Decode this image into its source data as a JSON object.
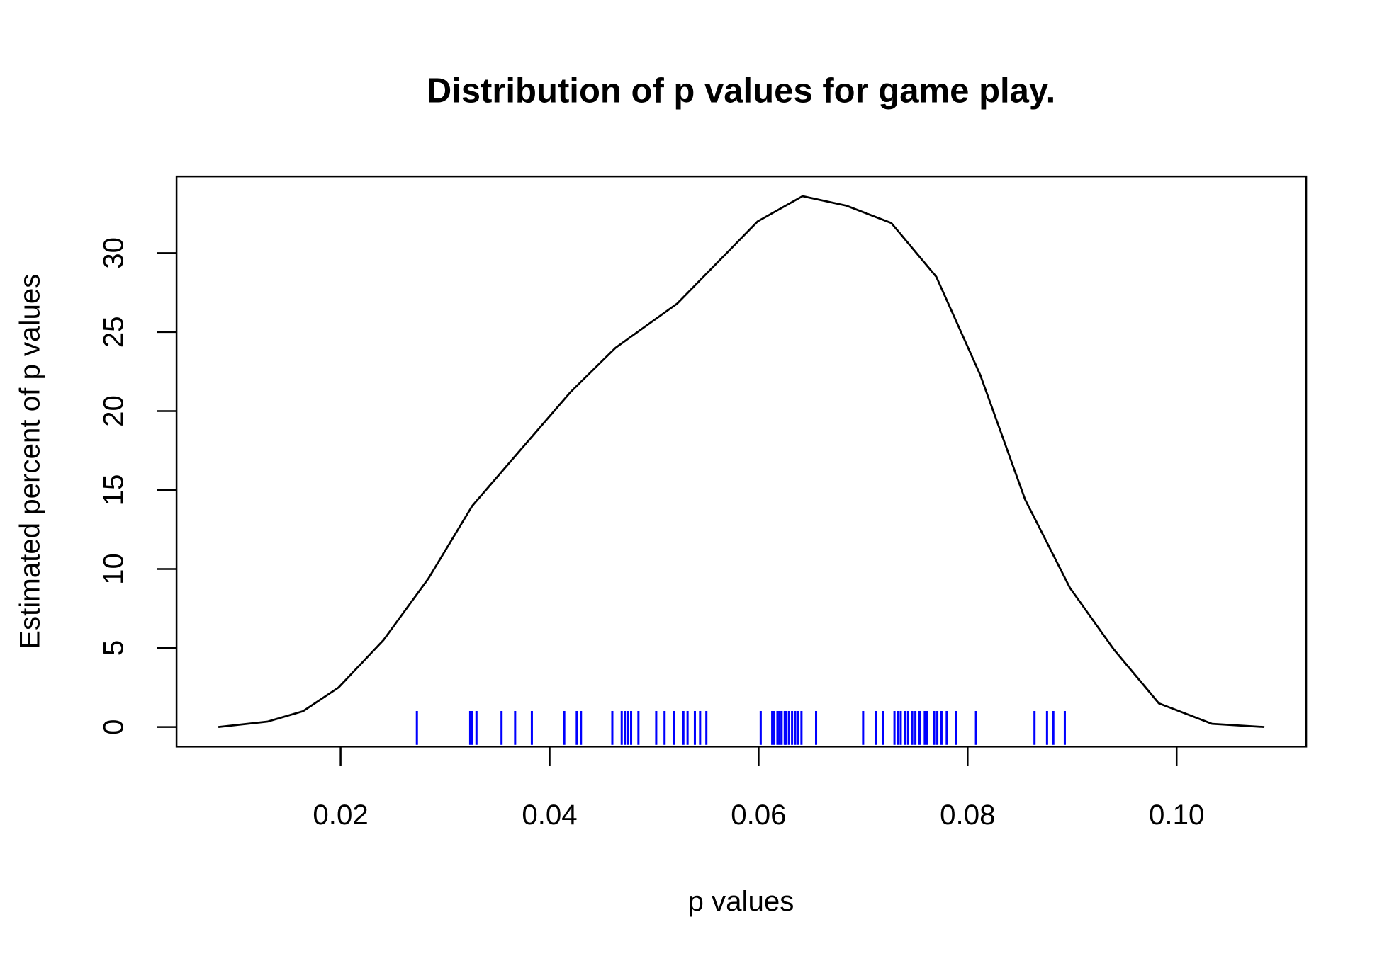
{
  "chart_data": {
    "type": "line",
    "title": "Distribution of p values for game play.",
    "x_label": "p values",
    "y_label": "Estimated percent of p values",
    "x": [
      0.0083,
      0.013,
      0.0164,
      0.0198,
      0.0241,
      0.0284,
      0.0326,
      0.0369,
      0.042,
      0.0463,
      0.0522,
      0.0565,
      0.0599,
      0.0642,
      0.0684,
      0.0727,
      0.077,
      0.0812,
      0.0855,
      0.0898,
      0.094,
      0.0983,
      0.1034,
      0.1084
    ],
    "series": [
      {
        "name": "density",
        "color": "#000000",
        "values": [
          0,
          0.34,
          1.0,
          2.5,
          5.5,
          9.4,
          14.0,
          17.3,
          21.2,
          24.0,
          26.8,
          29.7,
          32.0,
          33.6,
          33.0,
          31.9,
          28.5,
          22.3,
          14.4,
          8.8,
          4.9,
          1.5,
          0.2,
          0
        ]
      }
    ],
    "rug": {
      "color": "#0000ff",
      "values": [
        0.0273,
        0.0324,
        0.0326,
        0.033,
        0.0354,
        0.0367,
        0.0383,
        0.0414,
        0.0426,
        0.043,
        0.046,
        0.0469,
        0.0472,
        0.0475,
        0.0478,
        0.0485,
        0.0502,
        0.051,
        0.0519,
        0.0528,
        0.0532,
        0.0539,
        0.0544,
        0.055,
        0.0602,
        0.0613,
        0.0615,
        0.0618,
        0.062,
        0.0622,
        0.0625,
        0.0626,
        0.0629,
        0.0632,
        0.0635,
        0.0638,
        0.0641,
        0.0655,
        0.07,
        0.0712,
        0.0719,
        0.073,
        0.0733,
        0.0736,
        0.074,
        0.0743,
        0.0747,
        0.075,
        0.0754,
        0.0759,
        0.0761,
        0.0768,
        0.0771,
        0.0775,
        0.078,
        0.0789,
        0.0808,
        0.0864,
        0.0876,
        0.0882,
        0.0893
      ]
    },
    "xlim": [
      0.0043,
      0.1124
    ],
    "ylim": [
      -1.24,
      34.85
    ],
    "xticks": [
      0.02,
      0.04,
      0.06,
      0.08,
      {
        "value": 0.1,
        "label": "0.10"
      }
    ],
    "yticks": [
      0,
      5,
      10,
      15,
      20,
      25,
      30
    ]
  }
}
